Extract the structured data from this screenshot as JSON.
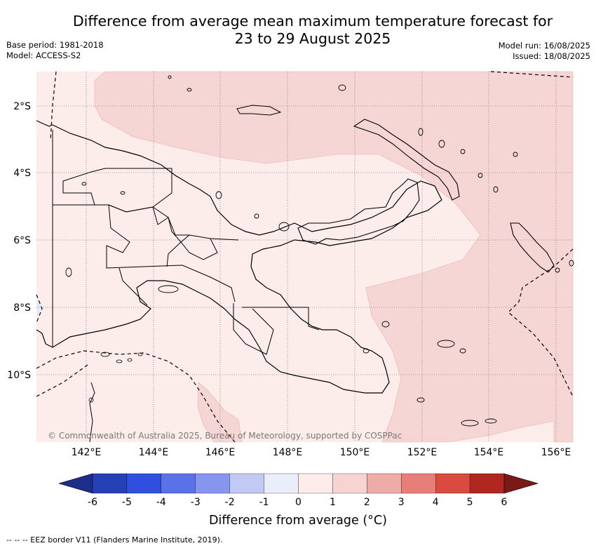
{
  "title_line1": "Difference from average mean maximum temperature forecast for",
  "title_line2": "23 to 29 August 2025",
  "base_period": "Base period: 1981-2018",
  "model": "Model: ACCESS-S2",
  "model_run": "Model run: 16/08/2025",
  "issued": "Issued: 18/08/2025",
  "lat_labels": [
    "2°S",
    "4°S",
    "6°S",
    "8°S",
    "10°S"
  ],
  "lon_labels": [
    "142°E",
    "144°E",
    "146°E",
    "148°E",
    "150°E",
    "152°E",
    "154°E",
    "156°E"
  ],
  "colorbar": {
    "ticks": [
      "-6",
      "-5",
      "-4",
      "-3",
      "-2",
      "-1",
      "0",
      "1",
      "2",
      "3",
      "4",
      "5",
      "6"
    ],
    "colors": [
      "#1c2e8a",
      "#2540b5",
      "#2e4fe0",
      "#5a72e6",
      "#8895ec",
      "#c2c9f4",
      "#eaedfa",
      "#fdecea",
      "#f6d4d2",
      "#efaba6",
      "#e57f77",
      "#d94a3f",
      "#b0271f",
      "#7a1a17"
    ],
    "label": "Difference from average (°C)"
  },
  "copyright": "© Commonwealth of Australia 2025, Bureau of Meteorology, supported by COSPPac",
  "footnote": "--  --  -- EEZ border V11 (Flanders Marine Institute, 2019)."
}
